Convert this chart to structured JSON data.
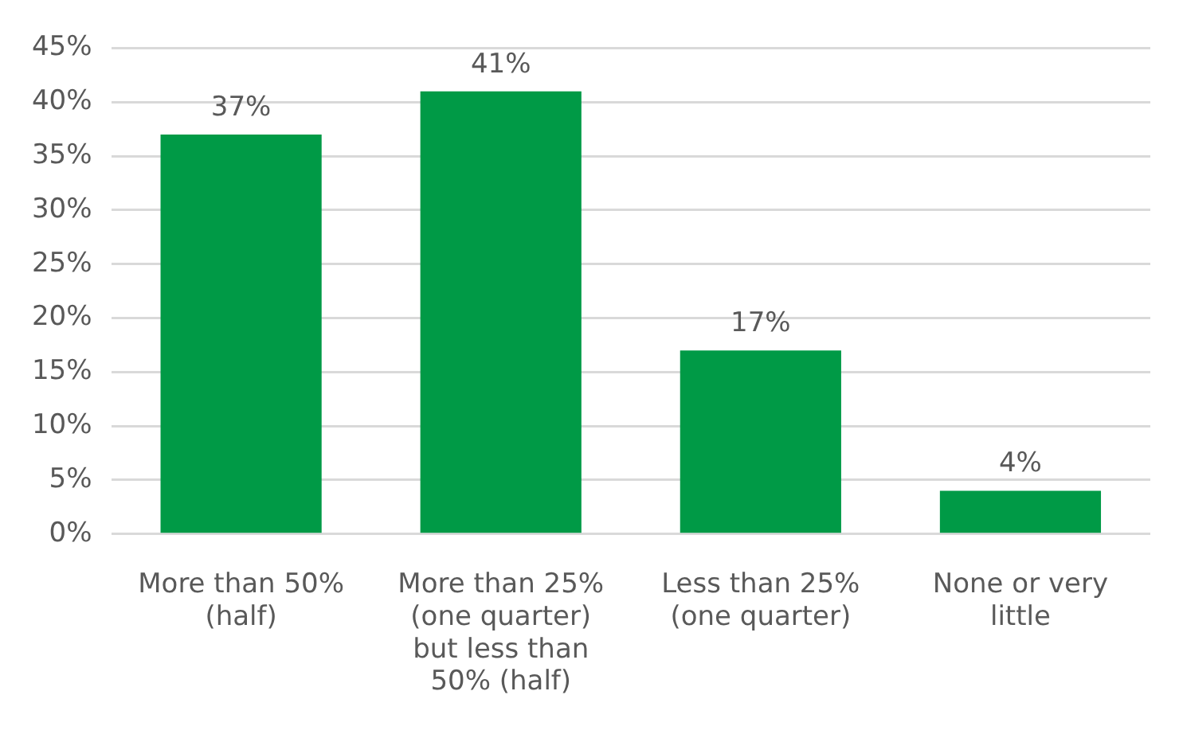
{
  "chart_data": {
    "type": "bar",
    "categories": [
      "More than 50% (half)",
      "More than 25% (one quarter) but less than 50% (half)",
      "Less than 25% (one quarter)",
      "None or very little"
    ],
    "values": [
      37,
      41,
      17,
      4
    ],
    "value_labels": [
      "37%",
      "41%",
      "17%",
      "4%"
    ],
    "color": "#009a46",
    "ylim": [
      0,
      45
    ],
    "yticks": [
      {
        "value": 0,
        "label": "0%"
      },
      {
        "value": 5,
        "label": "5%"
      },
      {
        "value": 10,
        "label": "10%"
      },
      {
        "value": 15,
        "label": "15%"
      },
      {
        "value": 20,
        "label": "20%"
      },
      {
        "value": 25,
        "label": "25%"
      },
      {
        "value": 30,
        "label": "30%"
      },
      {
        "value": 35,
        "label": "35%"
      },
      {
        "value": 40,
        "label": "40%"
      },
      {
        "value": 45,
        "label": "45%"
      }
    ],
    "grid": "y",
    "legend": false
  }
}
